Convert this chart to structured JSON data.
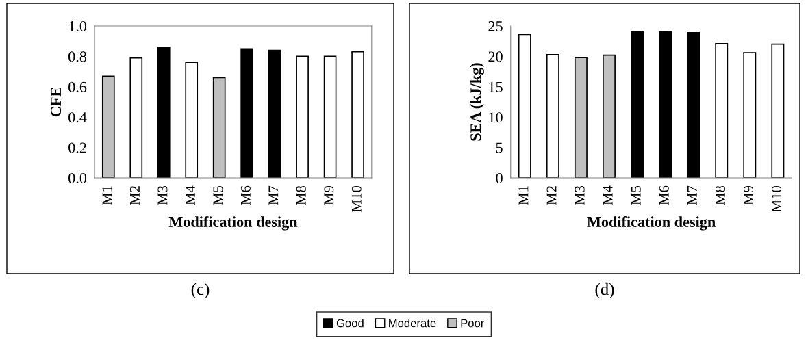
{
  "chart_data": [
    {
      "type": "bar",
      "stacked": true,
      "xlabel": "Modification design",
      "ylabel": "CFE",
      "annotations": [
        "(c)"
      ],
      "categories": [
        "M1",
        "M2",
        "M3",
        "M4",
        "M5",
        "M6",
        "M7",
        "M8",
        "M9",
        "M10"
      ],
      "ylim": [
        0,
        1.0
      ],
      "yticks": [
        {
          "value": 0,
          "label": "0.0"
        },
        {
          "value": 0.2,
          "label": "0.2"
        },
        {
          "value": 0.4,
          "label": "0.4"
        },
        {
          "value": 0.6,
          "label": "0.6"
        },
        {
          "value": 0.8,
          "label": "0.8"
        },
        {
          "value": 1.0,
          "label": "1.0"
        }
      ],
      "legend": "bottom",
      "grid": false,
      "series": [
        {
          "name": "Good",
          "color": "#000000",
          "values": [
            null,
            null,
            0.86,
            null,
            null,
            0.85,
            0.84,
            null,
            null,
            null
          ]
        },
        {
          "name": "Moderate",
          "color": "#ffffff",
          "values": [
            null,
            0.79,
            null,
            0.76,
            null,
            null,
            null,
            0.8,
            0.8,
            0.83
          ]
        },
        {
          "name": "Poor",
          "color": "#c0c0c0",
          "values": [
            0.67,
            null,
            null,
            null,
            0.66,
            null,
            null,
            null,
            null,
            null
          ]
        }
      ]
    },
    {
      "type": "bar",
      "stacked": true,
      "xlabel": "Modification design",
      "ylabel": "SEA (kJ/kg)",
      "annotations": [
        "(d)"
      ],
      "categories": [
        "M1",
        "M2",
        "M3",
        "M4",
        "M5",
        "M6",
        "M7",
        "M8",
        "M9",
        "M10"
      ],
      "ylim": [
        0,
        25
      ],
      "yticks": [
        0,
        5,
        10,
        15,
        20,
        25
      ],
      "grid": false,
      "series": [
        {
          "color": "#000000",
          "values": [
            null,
            null,
            null,
            null,
            24.0,
            24.0,
            23.9,
            null,
            null,
            null
          ]
        },
        {
          "color": "#ffffff",
          "values": [
            23.6,
            20.3,
            null,
            null,
            null,
            null,
            null,
            22.1,
            20.6,
            22.0
          ]
        },
        {
          "color": "#c0c0c0",
          "values": [
            null,
            null,
            19.8,
            20.2,
            null,
            null,
            null,
            null,
            null,
            null
          ]
        }
      ]
    }
  ]
}
